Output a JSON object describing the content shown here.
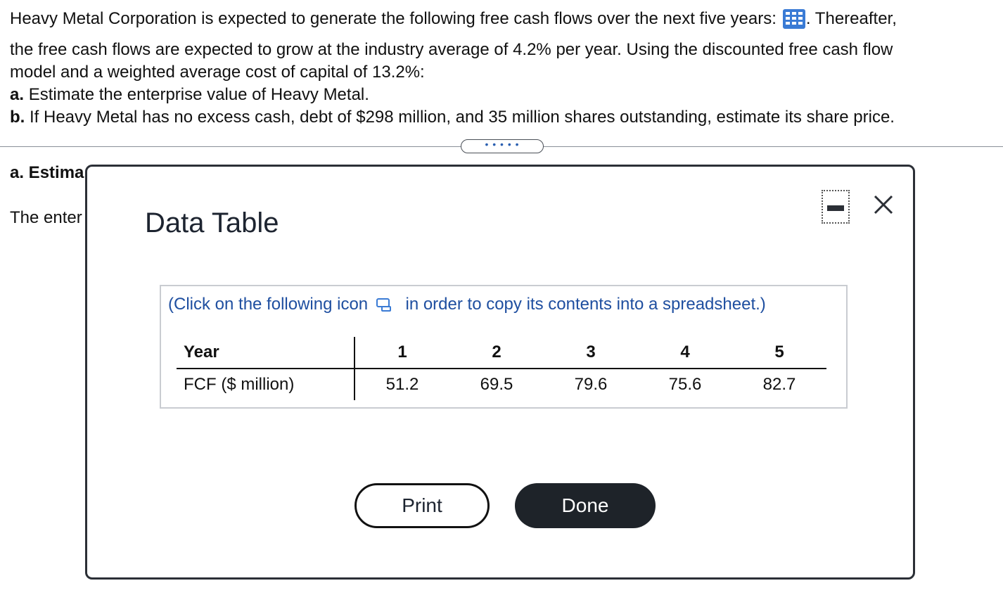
{
  "question": {
    "line1_text": "Heavy Metal Corporation is expected to generate the following free cash flows over the next five years:",
    "line1_after": ". Thereafter,",
    "line2": "the free cash flows are expected to grow at the industry average of 4.2% per year. Using the discounted free cash flow",
    "line3": "model and a weighted average cost of capital of 13.2%:",
    "part_a_label": "a.",
    "part_a_text": "Estimate the enterprise value of Heavy Metal.",
    "part_b_label": "b.",
    "part_b_text": "If Heavy Metal has no excess cash, debt of $298 million, and 35 million shares outstanding, estimate its share price."
  },
  "expand_label": "• • • • •",
  "behind": {
    "part_a_heading": "a. Estima",
    "enter_text": "The enter"
  },
  "modal": {
    "title": "Data Table",
    "instruction_before": "(Click on the following icon",
    "instruction_after": "in order to copy its contents into a spreadsheet.)",
    "table": {
      "header_label": "Year",
      "years": [
        "1",
        "2",
        "3",
        "4",
        "5"
      ],
      "row_label": "FCF ($ million)",
      "fcf": [
        "51.2",
        "69.5",
        "79.6",
        "75.6",
        "82.7"
      ]
    },
    "print_label": "Print",
    "done_label": "Done"
  },
  "colors": {
    "link_blue": "#1f4fa0",
    "grid_icon_blue": "#3a7bd5",
    "done_bg": "#1e2329"
  }
}
